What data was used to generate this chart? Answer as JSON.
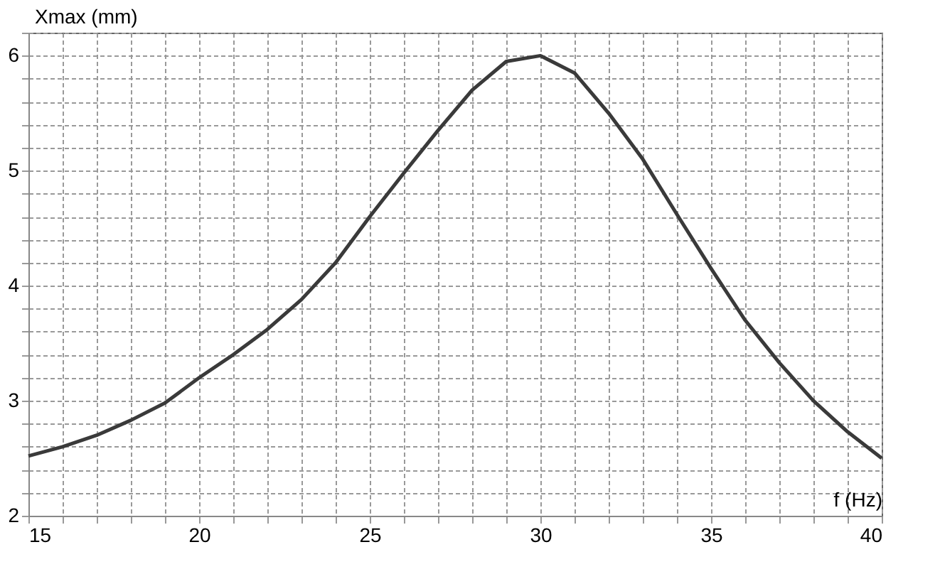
{
  "chart_data": {
    "type": "line",
    "xlabel": "f (Hz)",
    "ylabel": "Xmax (mm)",
    "x": [
      15,
      16,
      17,
      18,
      19,
      20,
      21,
      22,
      23,
      24,
      25,
      26,
      27,
      28,
      29,
      30,
      31,
      32,
      33,
      34,
      35,
      36,
      37,
      38,
      39,
      40
    ],
    "series": [
      {
        "color": "#3a3a3a",
        "values": [
          2.52,
          2.6,
          2.7,
          2.83,
          2.98,
          3.2,
          3.4,
          3.62,
          3.88,
          4.2,
          4.6,
          4.98,
          5.35,
          5.7,
          5.95,
          6.0,
          5.85,
          5.5,
          5.1,
          4.62,
          4.15,
          3.7,
          3.33,
          3.0,
          2.73,
          2.5
        ]
      }
    ],
    "xlim": [
      15,
      40
    ],
    "ylim": [
      2,
      6.2
    ],
    "xticks": [
      15,
      {
        "value": 16,
        "label": null
      },
      {
        "value": 17,
        "label": null
      },
      {
        "value": 18,
        "label": null
      },
      {
        "value": 19,
        "label": null
      },
      20,
      {
        "value": 21,
        "label": null
      },
      {
        "value": 22,
        "label": null
      },
      {
        "value": 23,
        "label": null
      },
      {
        "value": 24,
        "label": null
      },
      25,
      {
        "value": 26,
        "label": null
      },
      {
        "value": 27,
        "label": null
      },
      {
        "value": 28,
        "label": null
      },
      {
        "value": 29,
        "label": null
      },
      30,
      {
        "value": 31,
        "label": null
      },
      {
        "value": 32,
        "label": null
      },
      {
        "value": 33,
        "label": null
      },
      {
        "value": 34,
        "label": null
      },
      35,
      {
        "value": 36,
        "label": null
      },
      {
        "value": 37,
        "label": null
      },
      {
        "value": 38,
        "label": null
      },
      {
        "value": 39,
        "label": null
      },
      40
    ],
    "yticks": [
      2,
      {
        "value": 2.2,
        "label": null
      },
      {
        "value": 2.4,
        "label": null
      },
      {
        "value": 2.6,
        "label": null
      },
      {
        "value": 2.8,
        "label": null
      },
      3,
      {
        "value": 3.2,
        "label": null
      },
      {
        "value": 3.4,
        "label": null
      },
      {
        "value": 3.6,
        "label": null
      },
      {
        "value": 3.8,
        "label": null
      },
      4,
      {
        "value": 4.2,
        "label": null
      },
      {
        "value": 4.4,
        "label": null
      },
      {
        "value": 4.6,
        "label": null
      },
      {
        "value": 4.8,
        "label": null
      },
      5,
      {
        "value": 5.2,
        "label": null
      },
      {
        "value": 5.4,
        "label": null
      },
      {
        "value": 5.6,
        "label": null
      },
      {
        "value": 5.8,
        "label": null
      },
      6,
      {
        "value": 6.2,
        "label": null
      }
    ],
    "grid": true,
    "marker": "none",
    "line_style": "solid"
  }
}
